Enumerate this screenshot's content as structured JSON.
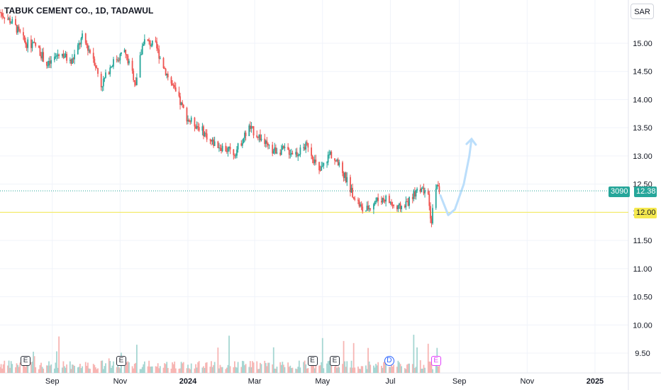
{
  "header": {
    "title": "TABUK CEMENT CO., 1D, TADAWUL"
  },
  "toolbar": {
    "currency": "SAR"
  },
  "price_tags": {
    "volume": "3090",
    "last": "12.38",
    "level": "12.00"
  },
  "events": [
    {
      "kind": "E",
      "date": "2023-08-08"
    },
    {
      "kind": "E",
      "date": "2023-11-02"
    },
    {
      "kind": "E",
      "date": "2024-04-22"
    },
    {
      "kind": "E",
      "date": "2024-05-12"
    },
    {
      "kind": "D",
      "date": "2024-06-30"
    },
    {
      "kind": "E",
      "date": "2024-08-11"
    }
  ],
  "colors": {
    "up": "#26a69a",
    "down": "#ef5350",
    "level_line": "#f5e94f",
    "projection": "#bbdefb",
    "grid": "#f0f3fa"
  },
  "chart_data": {
    "type": "candlestick",
    "symbol": "TABUK CEMENT CO.",
    "interval": "1D",
    "exchange": "TADAWUL",
    "currency": "SAR",
    "x_range": [
      "2023-07-16",
      "2025-01-31"
    ],
    "y_range": [
      9.3,
      15.7
    ],
    "y_ticks": [
      9.5,
      10.0,
      10.5,
      11.0,
      11.5,
      12.0,
      12.5,
      13.0,
      13.5,
      14.0,
      14.5,
      15.0
    ],
    "x_ticks": [
      {
        "label": "Sep",
        "date": "2023-09-01"
      },
      {
        "label": "Nov",
        "date": "2023-11-01"
      },
      {
        "label": "2024",
        "date": "2024-01-01"
      },
      {
        "label": "Mar",
        "date": "2024-03-01"
      },
      {
        "label": "May",
        "date": "2024-05-01"
      },
      {
        "label": "Jul",
        "date": "2024-07-01"
      },
      {
        "label": "Sep",
        "date": "2024-09-01"
      },
      {
        "label": "Nov",
        "date": "2024-11-01"
      },
      {
        "label": "2025",
        "date": "2025-01-01"
      }
    ],
    "last_price": 12.38,
    "last_volume": 3090,
    "horizontal_level": 12.0,
    "price_path": [
      [
        "2023-07-16",
        15.55
      ],
      [
        "2023-07-28",
        15.35
      ],
      [
        "2023-08-08",
        15.0
      ],
      [
        "2023-08-18",
        14.95
      ],
      [
        "2023-08-28",
        14.6
      ],
      [
        "2023-09-08",
        14.85
      ],
      [
        "2023-09-18",
        14.65
      ],
      [
        "2023-09-28",
        15.1
      ],
      [
        "2023-10-08",
        14.75
      ],
      [
        "2023-10-15",
        14.25
      ],
      [
        "2023-10-25",
        14.65
      ],
      [
        "2023-11-05",
        14.85
      ],
      [
        "2023-11-15",
        14.3
      ],
      [
        "2023-11-22",
        15.05
      ],
      [
        "2023-12-03",
        14.95
      ],
      [
        "2023-12-12",
        14.5
      ],
      [
        "2023-12-20",
        14.15
      ],
      [
        "2024-01-01",
        13.65
      ],
      [
        "2024-01-12",
        13.5
      ],
      [
        "2024-01-22",
        13.25
      ],
      [
        "2024-02-01",
        13.15
      ],
      [
        "2024-02-12",
        13.05
      ],
      [
        "2024-02-25",
        13.5
      ],
      [
        "2024-03-05",
        13.35
      ],
      [
        "2024-03-15",
        13.1
      ],
      [
        "2024-03-28",
        13.1
      ],
      [
        "2024-04-08",
        13.05
      ],
      [
        "2024-04-18",
        13.2
      ],
      [
        "2024-04-28",
        12.7
      ],
      [
        "2024-05-08",
        13.05
      ],
      [
        "2024-05-18",
        12.75
      ],
      [
        "2024-05-28",
        12.35
      ],
      [
        "2024-06-07",
        12.0
      ],
      [
        "2024-06-17",
        12.2
      ],
      [
        "2024-06-27",
        12.25
      ],
      [
        "2024-07-07",
        12.05
      ],
      [
        "2024-07-18",
        12.2
      ],
      [
        "2024-07-26",
        12.45
      ],
      [
        "2024-08-04",
        12.25
      ],
      [
        "2024-08-07",
        11.8
      ],
      [
        "2024-08-10",
        12.5
      ],
      [
        "2024-08-14",
        12.38
      ]
    ],
    "volume_range": [
      0,
      1700000
    ],
    "projection_arrow": [
      [
        "2024-08-15",
        12.3
      ],
      [
        "2024-08-22",
        11.95
      ],
      [
        "2024-08-28",
        12.05
      ],
      [
        "2024-09-05",
        12.5
      ],
      [
        "2024-09-10",
        13.0
      ],
      [
        "2024-09-12",
        13.3
      ]
    ]
  }
}
